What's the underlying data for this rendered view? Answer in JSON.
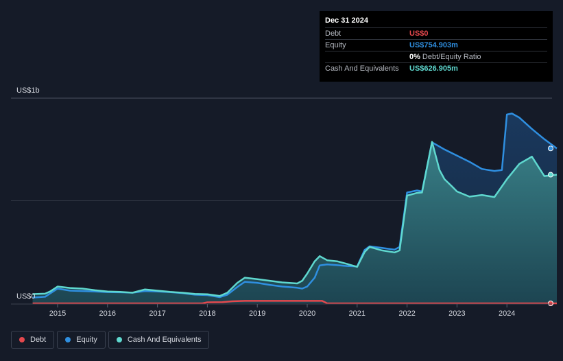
{
  "chart_data": {
    "type": "area",
    "y_top_label": "US$1b",
    "y_bottom_label": "US$0",
    "x_ticks": [
      "2015",
      "2016",
      "2017",
      "2018",
      "2019",
      "2020",
      "2021",
      "2022",
      "2023",
      "2024"
    ],
    "xlim": [
      2014.5,
      2025.0
    ],
    "ylim": [
      0,
      1000
    ],
    "grid": true,
    "units": "US$m",
    "series": [
      {
        "name": "Debt",
        "color": "#e5484d",
        "points": [
          [
            2014.5,
            0
          ],
          [
            2014.75,
            0
          ],
          [
            2015.0,
            0
          ],
          [
            2015.5,
            0
          ],
          [
            2016.0,
            0
          ],
          [
            2016.5,
            0
          ],
          [
            2017.0,
            0
          ],
          [
            2017.5,
            0
          ],
          [
            2017.9,
            0
          ],
          [
            2018.0,
            5
          ],
          [
            2018.3,
            6
          ],
          [
            2018.5,
            10
          ],
          [
            2018.75,
            12
          ],
          [
            2019.0,
            12
          ],
          [
            2019.5,
            12
          ],
          [
            2020.0,
            12
          ],
          [
            2020.3,
            12
          ],
          [
            2020.4,
            0
          ],
          [
            2020.6,
            0
          ],
          [
            2021.0,
            0
          ],
          [
            2022.0,
            0
          ],
          [
            2023.0,
            0
          ],
          [
            2024.0,
            0
          ],
          [
            2025.0,
            0
          ]
        ]
      },
      {
        "name": "Equity",
        "color": "#2f8fe0",
        "points": [
          [
            2014.5,
            28
          ],
          [
            2014.75,
            32
          ],
          [
            2014.85,
            48
          ],
          [
            2015.0,
            72
          ],
          [
            2015.25,
            62
          ],
          [
            2015.5,
            60
          ],
          [
            2015.75,
            58
          ],
          [
            2016.0,
            55
          ],
          [
            2016.25,
            54
          ],
          [
            2016.5,
            52
          ],
          [
            2016.75,
            60
          ],
          [
            2017.0,
            58
          ],
          [
            2017.25,
            55
          ],
          [
            2017.5,
            50
          ],
          [
            2017.75,
            42
          ],
          [
            2018.0,
            40
          ],
          [
            2018.25,
            30
          ],
          [
            2018.4,
            42
          ],
          [
            2018.6,
            80
          ],
          [
            2018.75,
            105
          ],
          [
            2019.0,
            100
          ],
          [
            2019.25,
            90
          ],
          [
            2019.5,
            82
          ],
          [
            2019.8,
            76
          ],
          [
            2019.9,
            72
          ],
          [
            2020.0,
            82
          ],
          [
            2020.15,
            125
          ],
          [
            2020.25,
            185
          ],
          [
            2020.4,
            190
          ],
          [
            2020.6,
            186
          ],
          [
            2020.8,
            182
          ],
          [
            2021.0,
            180
          ],
          [
            2021.15,
            260
          ],
          [
            2021.25,
            278
          ],
          [
            2021.5,
            270
          ],
          [
            2021.75,
            262
          ],
          [
            2021.85,
            275
          ],
          [
            2022.0,
            540
          ],
          [
            2022.2,
            550
          ],
          [
            2022.3,
            545
          ],
          [
            2022.5,
            785
          ],
          [
            2022.75,
            750
          ],
          [
            2023.0,
            720
          ],
          [
            2023.25,
            690
          ],
          [
            2023.5,
            655
          ],
          [
            2023.75,
            645
          ],
          [
            2023.9,
            650
          ],
          [
            2024.0,
            920
          ],
          [
            2024.1,
            925
          ],
          [
            2024.25,
            905
          ],
          [
            2024.5,
            850
          ],
          [
            2024.75,
            800
          ],
          [
            2025.0,
            755
          ]
        ]
      },
      {
        "name": "Cash And Equivalents",
        "color": "#5fd8cf",
        "points": [
          [
            2014.5,
            45
          ],
          [
            2014.75,
            47
          ],
          [
            2014.85,
            58
          ],
          [
            2015.0,
            82
          ],
          [
            2015.25,
            75
          ],
          [
            2015.5,
            72
          ],
          [
            2015.75,
            64
          ],
          [
            2016.0,
            58
          ],
          [
            2016.25,
            56
          ],
          [
            2016.5,
            52
          ],
          [
            2016.75,
            68
          ],
          [
            2017.0,
            62
          ],
          [
            2017.25,
            56
          ],
          [
            2017.5,
            52
          ],
          [
            2017.75,
            46
          ],
          [
            2018.0,
            44
          ],
          [
            2018.25,
            36
          ],
          [
            2018.4,
            52
          ],
          [
            2018.6,
            100
          ],
          [
            2018.75,
            125
          ],
          [
            2019.0,
            118
          ],
          [
            2019.25,
            110
          ],
          [
            2019.5,
            102
          ],
          [
            2019.8,
            97
          ],
          [
            2019.9,
            110
          ],
          [
            2020.0,
            145
          ],
          [
            2020.15,
            205
          ],
          [
            2020.25,
            230
          ],
          [
            2020.4,
            210
          ],
          [
            2020.6,
            205
          ],
          [
            2020.8,
            192
          ],
          [
            2021.0,
            178
          ],
          [
            2021.15,
            250
          ],
          [
            2021.25,
            275
          ],
          [
            2021.5,
            258
          ],
          [
            2021.75,
            248
          ],
          [
            2021.85,
            258
          ],
          [
            2022.0,
            525
          ],
          [
            2022.2,
            538
          ],
          [
            2022.3,
            540
          ],
          [
            2022.5,
            787
          ],
          [
            2022.65,
            650
          ],
          [
            2022.75,
            605
          ],
          [
            2022.9,
            570
          ],
          [
            2023.0,
            545
          ],
          [
            2023.25,
            520
          ],
          [
            2023.5,
            528
          ],
          [
            2023.75,
            518
          ],
          [
            2024.0,
            605
          ],
          [
            2024.25,
            680
          ],
          [
            2024.5,
            715
          ],
          [
            2024.75,
            620
          ],
          [
            2025.0,
            627
          ]
        ]
      }
    ]
  },
  "tooltip": {
    "date": "Dec 31 2024",
    "rows": {
      "debt": {
        "label": "Debt",
        "value": "US$0",
        "color": "#e5484d"
      },
      "equity": {
        "label": "Equity",
        "value": "US$754.903m",
        "color": "#2f8fe0"
      },
      "ratio": {
        "value": "0%",
        "rest": "Debt/Equity Ratio"
      },
      "cash": {
        "label": "Cash And Equivalents",
        "value": "US$626.905m",
        "color": "#5fd8cf"
      }
    }
  },
  "legend": [
    {
      "label": "Debt",
      "color": "#e5484d"
    },
    {
      "label": "Equity",
      "color": "#2f8fe0"
    },
    {
      "label": "Cash And Equivalents",
      "color": "#5fd8cf"
    }
  ]
}
